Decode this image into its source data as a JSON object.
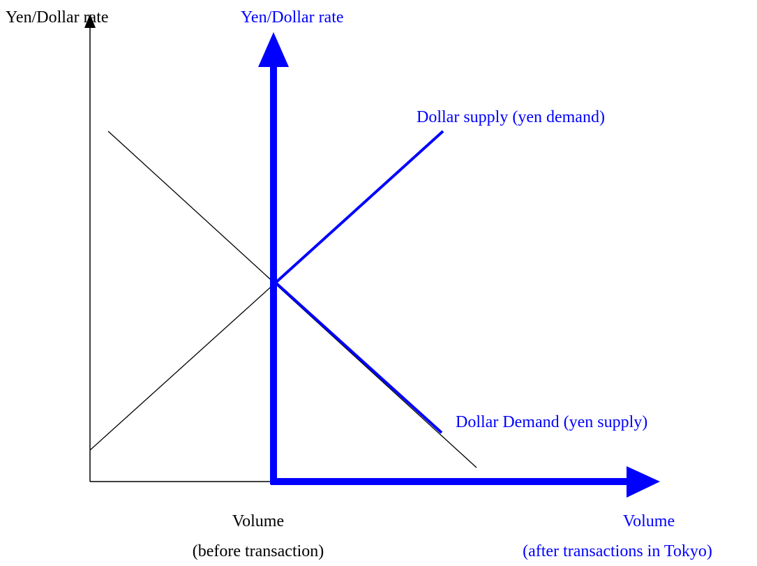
{
  "before": {
    "y_axis_label": "Yen/Dollar rate",
    "x_axis_label": "Volume",
    "x_axis_note": "(before transaction)"
  },
  "after": {
    "y_axis_label": "Yen/Dollar rate",
    "x_axis_label": "Volume",
    "x_axis_note": "(after transactions in Tokyo)",
    "supply_label": "Dollar supply (yen demand)",
    "demand_label": "Dollar Demand (yen supply)"
  }
}
